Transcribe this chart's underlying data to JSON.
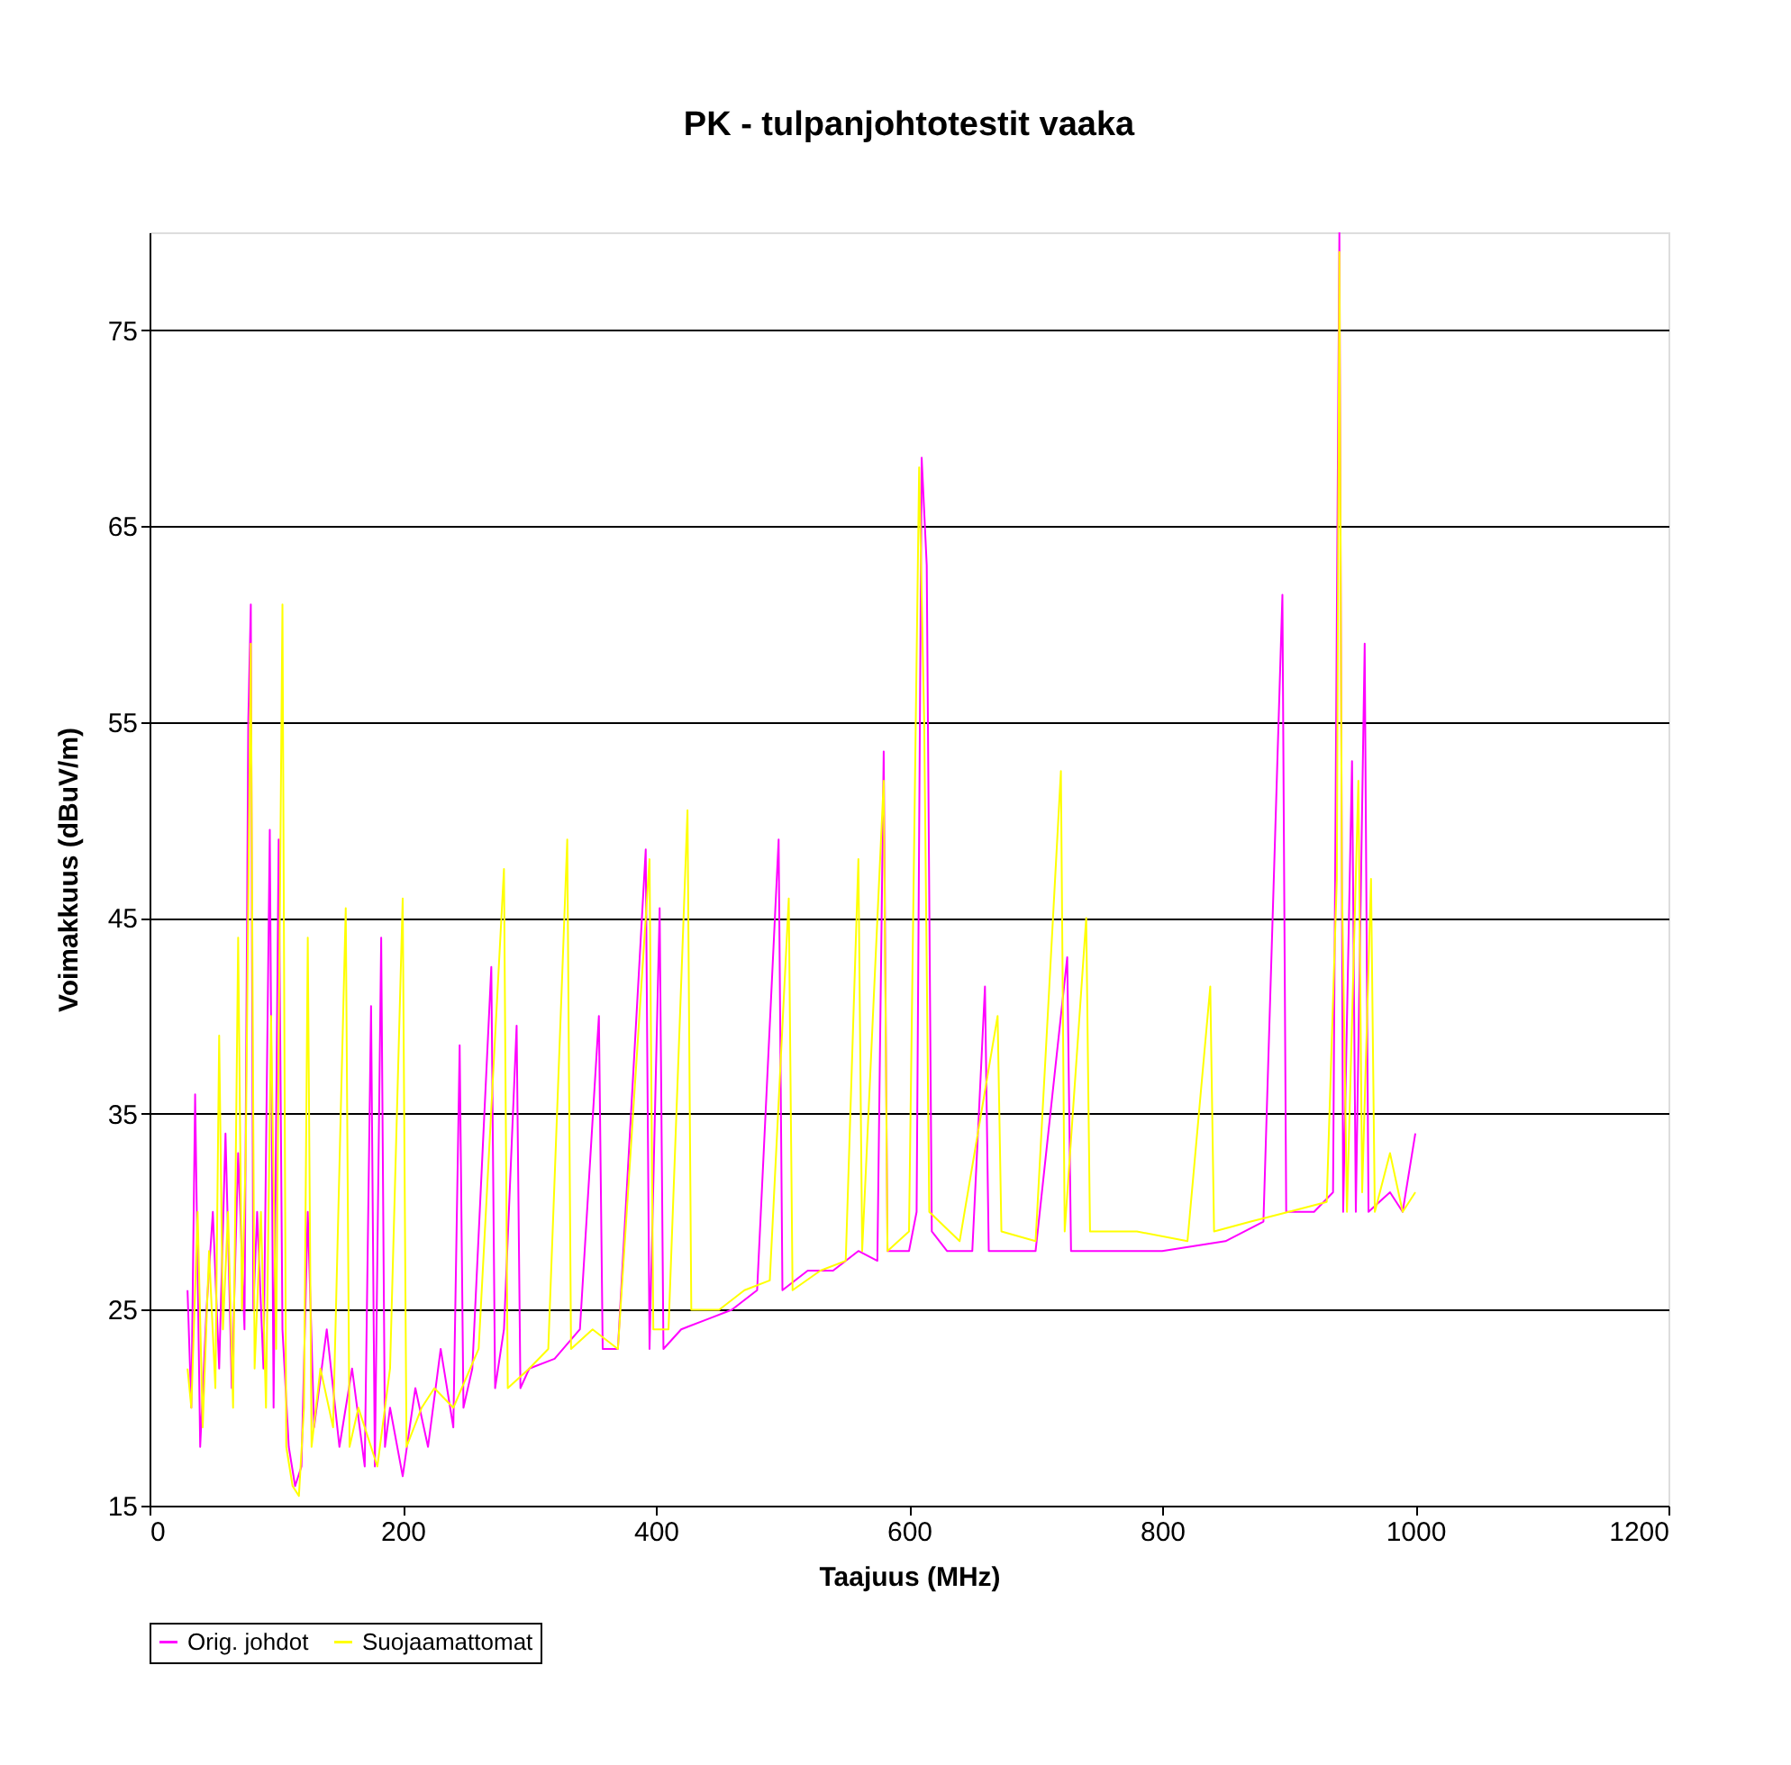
{
  "chart_data": {
    "type": "line",
    "title": "PK - tulpanjohtotestit vaaka",
    "xlabel": "Taajuus (MHz)",
    "ylabel": "Voimakkuus (dBuV/m)",
    "xlim": [
      0,
      1200
    ],
    "xticks": [
      0,
      200,
      400,
      600,
      800,
      1000,
      1200
    ],
    "ylim": [
      15,
      80
    ],
    "yticks": [
      15,
      25,
      35,
      45,
      55,
      65,
      75
    ],
    "grid": "y",
    "legend": "bottom",
    "marker": "none",
    "line_style": "solid",
    "series": [
      {
        "name": "Orig. johdot",
        "color": "#ff00ff",
        "x": [
          30,
          33,
          36,
          40,
          45,
          50,
          55,
          60,
          65,
          70,
          75,
          78,
          80,
          82,
          85,
          90,
          95,
          98,
          102,
          105,
          110,
          115,
          120,
          125,
          130,
          140,
          150,
          160,
          170,
          175,
          178,
          183,
          186,
          190,
          200,
          210,
          220,
          230,
          240,
          245,
          248,
          255,
          270,
          273,
          280,
          290,
          293,
          300,
          320,
          340,
          355,
          358,
          370,
          392,
          395,
          403,
          406,
          420,
          440,
          460,
          480,
          497,
          500,
          520,
          540,
          560,
          575,
          580,
          583,
          600,
          606,
          610,
          614,
          618,
          630,
          650,
          660,
          663,
          680,
          700,
          725,
          728,
          750,
          800,
          850,
          880,
          895,
          898,
          920,
          935,
          940,
          943,
          950,
          953,
          960,
          963,
          980,
          990,
          1000
        ],
        "values": [
          26,
          20,
          36,
          18,
          25,
          30,
          22,
          34,
          21,
          33,
          24,
          55,
          61,
          25,
          30,
          22,
          49.5,
          20,
          49,
          24,
          18,
          16,
          17,
          30,
          19,
          24,
          18,
          22,
          17,
          40.5,
          17,
          44,
          18,
          20,
          16.5,
          21,
          18,
          23,
          19,
          38.5,
          20,
          22,
          42.5,
          21,
          24,
          39.5,
          21,
          22,
          22.5,
          24,
          40,
          23,
          23,
          48.5,
          23,
          45.5,
          23,
          24,
          24.5,
          25,
          26,
          49,
          26,
          27,
          27,
          28,
          27.5,
          53.5,
          28,
          28,
          30,
          68.5,
          63,
          29,
          28,
          28,
          41.5,
          28,
          28,
          28,
          43,
          28,
          28,
          28,
          28.5,
          29.5,
          61.5,
          30,
          30,
          31,
          80,
          30,
          53,
          30,
          59,
          30,
          31,
          30,
          34
        ]
      },
      {
        "name": "Suojaamattomat",
        "color": "#ffff00",
        "x": [
          30,
          33,
          38,
          42,
          47,
          52,
          55,
          58,
          62,
          66,
          70,
          73,
          76,
          80,
          83,
          88,
          92,
          96,
          100,
          105,
          108,
          113,
          118,
          122,
          125,
          128,
          135,
          145,
          155,
          158,
          165,
          180,
          190,
          200,
          203,
          215,
          225,
          240,
          260,
          280,
          283,
          300,
          315,
          330,
          333,
          350,
          370,
          395,
          398,
          410,
          425,
          428,
          450,
          470,
          490,
          505,
          508,
          530,
          550,
          560,
          563,
          580,
          583,
          600,
          608,
          612,
          616,
          640,
          670,
          673,
          700,
          720,
          723,
          740,
          743,
          780,
          820,
          838,
          841,
          870,
          900,
          930,
          938,
          940,
          942,
          946,
          955,
          958,
          965,
          968,
          980,
          990,
          1000
        ],
        "values": [
          22,
          20,
          30,
          19,
          28,
          21,
          39,
          24,
          30,
          20,
          44,
          25,
          33,
          59,
          22,
          30,
          20,
          40,
          23,
          61,
          18,
          16,
          15.5,
          20,
          44,
          18,
          22,
          19,
          45.5,
          18,
          20,
          17,
          22,
          46,
          18,
          20,
          21,
          20,
          23,
          47.5,
          21,
          22,
          23,
          49,
          23,
          24,
          23,
          48,
          24,
          24,
          50.5,
          25,
          25,
          26,
          26.5,
          46,
          26,
          27,
          27.5,
          48,
          28,
          52,
          28,
          29,
          68,
          55,
          30,
          28.5,
          40,
          29,
          28.5,
          52.5,
          29,
          45,
          29,
          29,
          28.5,
          41.5,
          29,
          29.5,
          30,
          30.5,
          47,
          79,
          47,
          30,
          52,
          31,
          47,
          30,
          33,
          30,
          31
        ]
      }
    ]
  }
}
